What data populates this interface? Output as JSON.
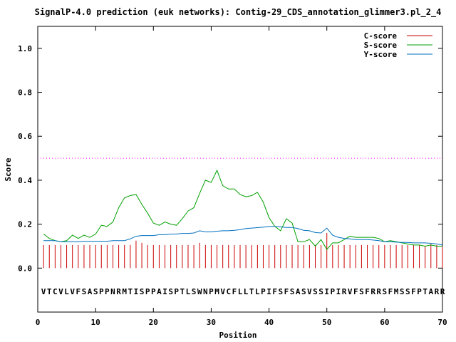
{
  "chart_data": {
    "type": "line",
    "title": "SignalP-4.0 prediction (euk networks): Contig-29_CDS_annotation_glimmer3.pl_2_4",
    "xlabel": "Position",
    "ylabel": "Score",
    "xlim": [
      0,
      70
    ],
    "ylim": [
      -0.2,
      1.1
    ],
    "xticks": [
      "0",
      "10",
      "20",
      "30",
      "40",
      "50",
      "60",
      "70"
    ],
    "yticks": [
      "0.0",
      "0.2",
      "0.4",
      "0.6",
      "0.8",
      "1.0"
    ],
    "threshold": 0.5,
    "legend_position": "top-right",
    "sequence": "VTCVLVFSASPPNRMTISPPAISPTLSWNPMVCFLLTLPIFSFSASVSSIPIRVFSFRRSFMSSFPTARR",
    "colors": {
      "c": "#cc0000",
      "s": "#00a000",
      "y": "#0070c0",
      "threshold": "#ff00ff"
    },
    "series": [
      {
        "key": "c",
        "name": "C-score",
        "style": "impulses",
        "values": [
          0.105,
          0.105,
          0.105,
          0.105,
          0.105,
          0.105,
          0.105,
          0.105,
          0.105,
          0.105,
          0.105,
          0.105,
          0.105,
          0.105,
          0.105,
          0.105,
          0.125,
          0.115,
          0.105,
          0.105,
          0.105,
          0.105,
          0.105,
          0.105,
          0.105,
          0.105,
          0.105,
          0.115,
          0.105,
          0.105,
          0.105,
          0.105,
          0.105,
          0.105,
          0.105,
          0.105,
          0.105,
          0.105,
          0.105,
          0.105,
          0.105,
          0.105,
          0.105,
          0.105,
          0.105,
          0.105,
          0.105,
          0.105,
          0.105,
          0.16,
          0.105,
          0.105,
          0.105,
          0.105,
          0.105,
          0.105,
          0.105,
          0.105,
          0.105,
          0.105,
          0.105,
          0.105,
          0.105,
          0.105,
          0.105,
          0.105,
          0.1,
          0.11,
          0.105,
          0.1
        ]
      },
      {
        "key": "s",
        "name": "S-score",
        "style": "line",
        "values": [
          0.155,
          0.135,
          0.125,
          0.12,
          0.125,
          0.15,
          0.135,
          0.15,
          0.14,
          0.155,
          0.195,
          0.19,
          0.21,
          0.275,
          0.32,
          0.33,
          0.335,
          0.29,
          0.25,
          0.205,
          0.195,
          0.21,
          0.2,
          0.195,
          0.225,
          0.26,
          0.275,
          0.34,
          0.4,
          0.39,
          0.445,
          0.375,
          0.36,
          0.36,
          0.335,
          0.325,
          0.33,
          0.345,
          0.3,
          0.23,
          0.19,
          0.17,
          0.225,
          0.205,
          0.12,
          0.12,
          0.13,
          0.1,
          0.13,
          0.085,
          0.115,
          0.115,
          0.13,
          0.145,
          0.14,
          0.14,
          0.14,
          0.14,
          0.135,
          0.12,
          0.125,
          0.12,
          0.115,
          0.11,
          0.105,
          0.105,
          0.1,
          0.105,
          0.1,
          0.1
        ]
      },
      {
        "key": "y",
        "name": "Y-score",
        "style": "line",
        "values": [
          0.125,
          0.125,
          0.125,
          0.12,
          0.12,
          0.12,
          0.12,
          0.122,
          0.122,
          0.122,
          0.122,
          0.122,
          0.125,
          0.125,
          0.125,
          0.133,
          0.145,
          0.148,
          0.148,
          0.148,
          0.152,
          0.152,
          0.155,
          0.155,
          0.158,
          0.158,
          0.16,
          0.17,
          0.165,
          0.165,
          0.168,
          0.17,
          0.17,
          0.172,
          0.175,
          0.18,
          0.182,
          0.184,
          0.186,
          0.19,
          0.19,
          0.188,
          0.185,
          0.185,
          0.18,
          0.172,
          0.17,
          0.162,
          0.16,
          0.182,
          0.15,
          0.14,
          0.135,
          0.133,
          0.13,
          0.13,
          0.13,
          0.128,
          0.125,
          0.12,
          0.12,
          0.118,
          0.117,
          0.117,
          0.115,
          0.115,
          0.115,
          0.113,
          0.11,
          0.105
        ]
      }
    ]
  }
}
